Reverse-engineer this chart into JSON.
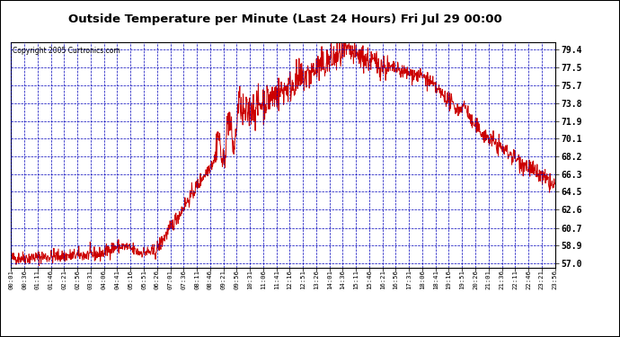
{
  "title": "Outside Temperature per Minute (Last 24 Hours) Fri Jul 29 00:00",
  "copyright": "Copyright 2005 Curtronics.com",
  "bg_color": "#FFFFFF",
  "plot_bg_color": "#FFFFFF",
  "line_color": "#CC0000",
  "grid_color": "#0000BB",
  "axis_label_color": "#000000",
  "title_color": "#000000",
  "yticks": [
    57.0,
    58.9,
    60.7,
    62.6,
    64.5,
    66.3,
    68.2,
    70.1,
    71.9,
    73.8,
    75.7,
    77.5,
    79.4
  ],
  "ylim": [
    56.5,
    80.2
  ],
  "xtick_labels": [
    "00:01",
    "00:36",
    "01:11",
    "01:46",
    "02:21",
    "02:56",
    "03:31",
    "04:06",
    "04:41",
    "05:16",
    "05:51",
    "06:26",
    "07:01",
    "07:36",
    "08:11",
    "08:46",
    "09:21",
    "09:56",
    "10:31",
    "11:06",
    "11:41",
    "12:16",
    "12:51",
    "13:26",
    "14:01",
    "14:36",
    "15:11",
    "15:46",
    "16:21",
    "16:56",
    "17:31",
    "18:06",
    "18:41",
    "19:16",
    "19:51",
    "20:26",
    "21:01",
    "21:36",
    "22:11",
    "22:46",
    "23:21",
    "23:56"
  ],
  "n_points": 1440
}
